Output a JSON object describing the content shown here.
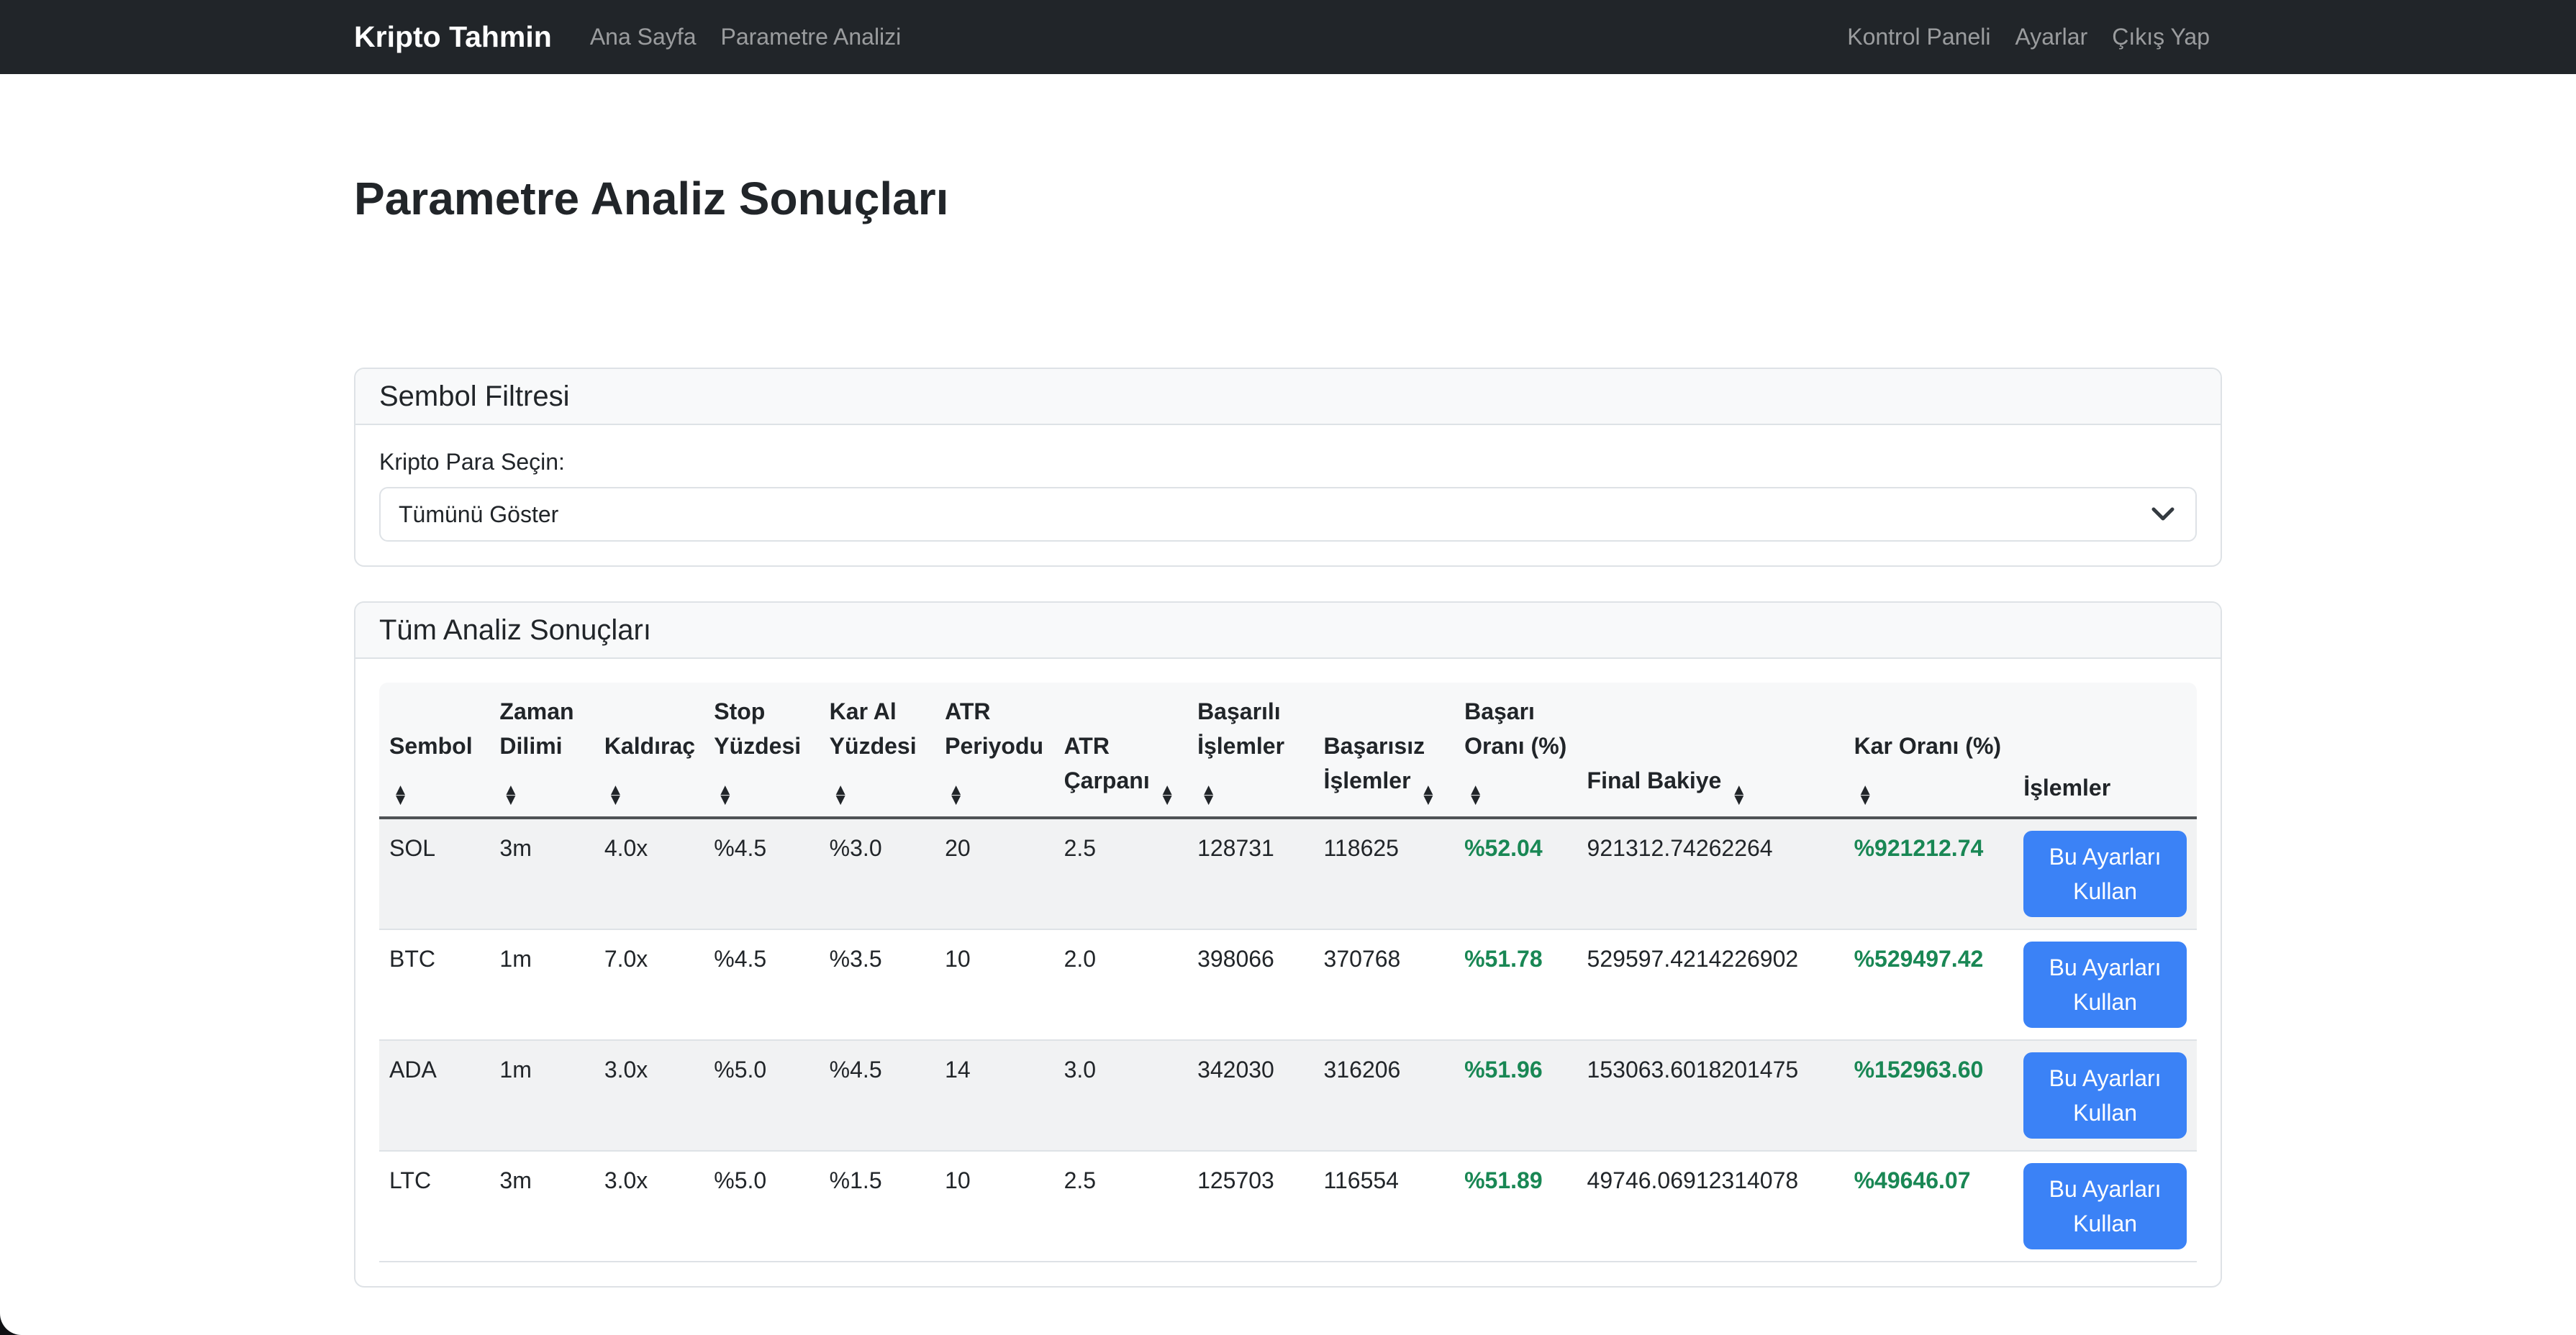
{
  "navbar": {
    "brand": "Kripto Tahmin",
    "left_links": [
      {
        "label": "Ana Sayfa"
      },
      {
        "label": "Parametre Analizi"
      }
    ],
    "right_links": [
      {
        "label": "Kontrol Paneli"
      },
      {
        "label": "Ayarlar"
      },
      {
        "label": "Çıkış Yap"
      }
    ]
  },
  "page": {
    "title": "Parametre Analiz Sonuçları"
  },
  "filter_card": {
    "title": "Sembol Filtresi",
    "label": "Kripto Para Seçin:",
    "selected_option": "Tümünü Göster"
  },
  "results_card": {
    "title": "Tüm Analiz Sonuçları",
    "table": {
      "columns": [
        {
          "label": "Sembol",
          "sortable": true
        },
        {
          "label": "Zaman Dilimi",
          "sortable": true
        },
        {
          "label": "Kaldıraç",
          "sortable": true
        },
        {
          "label": "Stop Yüzdesi",
          "sortable": true
        },
        {
          "label": "Kar Al Yüzdesi",
          "sortable": true
        },
        {
          "label": "ATR Periyodu",
          "sortable": true
        },
        {
          "label": "ATR Çarpanı",
          "sortable": true
        },
        {
          "label": "Başarılı İşlemler",
          "sortable": true
        },
        {
          "label": "Başarısız İşlemler",
          "sortable": true
        },
        {
          "label": "Başarı Oranı (%)",
          "sortable": true
        },
        {
          "label": "Final Bakiye",
          "sortable": true
        },
        {
          "label": "Kar Oranı (%)",
          "sortable": true
        },
        {
          "label": "İşlemler",
          "sortable": false
        }
      ],
      "action_label": "Bu Ayarları Kullan",
      "rows": [
        {
          "symbol": "SOL",
          "timeframe": "3m",
          "leverage": "4.0x",
          "stop_pct": "%4.5",
          "take_profit_pct": "%3.0",
          "atr_period": "20",
          "atr_multiplier": "2.5",
          "wins": "128731",
          "losses": "118625",
          "win_rate": "%52.04",
          "final_balance": "921312.74262264",
          "profit_rate": "%921212.74"
        },
        {
          "symbol": "BTC",
          "timeframe": "1m",
          "leverage": "7.0x",
          "stop_pct": "%4.5",
          "take_profit_pct": "%3.5",
          "atr_period": "10",
          "atr_multiplier": "2.0",
          "wins": "398066",
          "losses": "370768",
          "win_rate": "%51.78",
          "final_balance": "529597.4214226902",
          "profit_rate": "%529497.42"
        },
        {
          "symbol": "ADA",
          "timeframe": "1m",
          "leverage": "3.0x",
          "stop_pct": "%5.0",
          "take_profit_pct": "%4.5",
          "atr_period": "14",
          "atr_multiplier": "3.0",
          "wins": "342030",
          "losses": "316206",
          "win_rate": "%51.96",
          "final_balance": "153063.6018201475",
          "profit_rate": "%152963.60"
        },
        {
          "symbol": "LTC",
          "timeframe": "3m",
          "leverage": "3.0x",
          "stop_pct": "%5.0",
          "take_profit_pct": "%1.5",
          "atr_period": "10",
          "atr_multiplier": "2.5",
          "wins": "125703",
          "losses": "116554",
          "win_rate": "%51.89",
          "final_balance": "49746.06912314078",
          "profit_rate": "%49646.07"
        }
      ]
    }
  },
  "icons": {
    "sort_up": "▲",
    "sort_down": "▼",
    "select_chevron": "chevron-down-icon"
  },
  "colors": {
    "navbar_dark": "#212529",
    "accent_blue": "#3b82f6",
    "success_green": "#198754",
    "header_bg": "#f8f9fa"
  }
}
